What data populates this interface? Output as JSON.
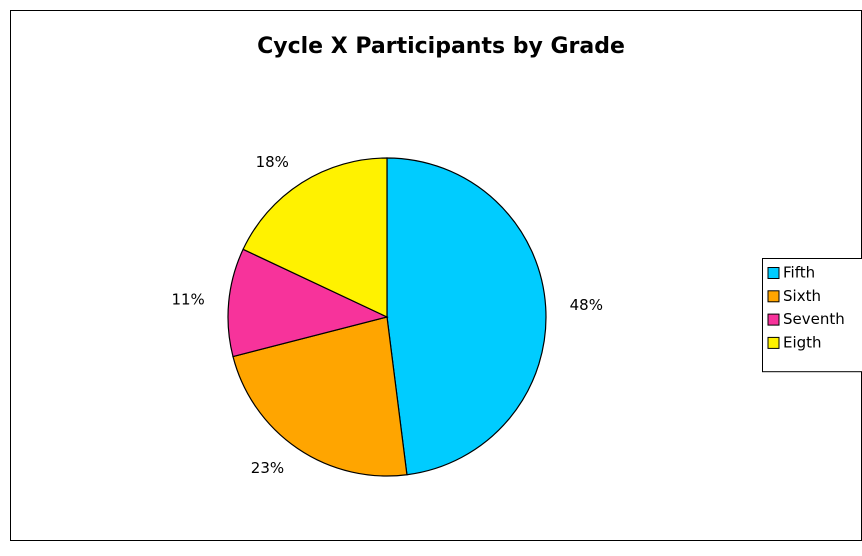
{
  "chart_data": {
    "type": "pie",
    "title": "Cycle X Participants by Grade",
    "categories": [
      "Fifth",
      "Sixth",
      "Seventh",
      "Eigth"
    ],
    "values": [
      48,
      23,
      11,
      18
    ],
    "value_labels": [
      "48%",
      "23%",
      "11%",
      "18%"
    ],
    "colors": [
      "#00ccff",
      "#ffa500",
      "#f7339b",
      "#fff200"
    ],
    "legend": "right"
  }
}
